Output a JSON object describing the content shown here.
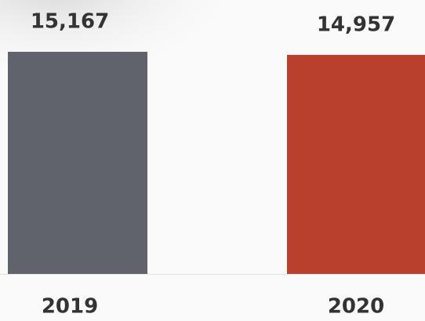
{
  "chart_data": {
    "type": "bar",
    "categories": [
      "2019",
      "2020"
    ],
    "values": [
      15167,
      14957
    ],
    "value_labels": [
      "15,167",
      "14,957"
    ],
    "colors": [
      "#60636b",
      "#b8402c"
    ]
  }
}
